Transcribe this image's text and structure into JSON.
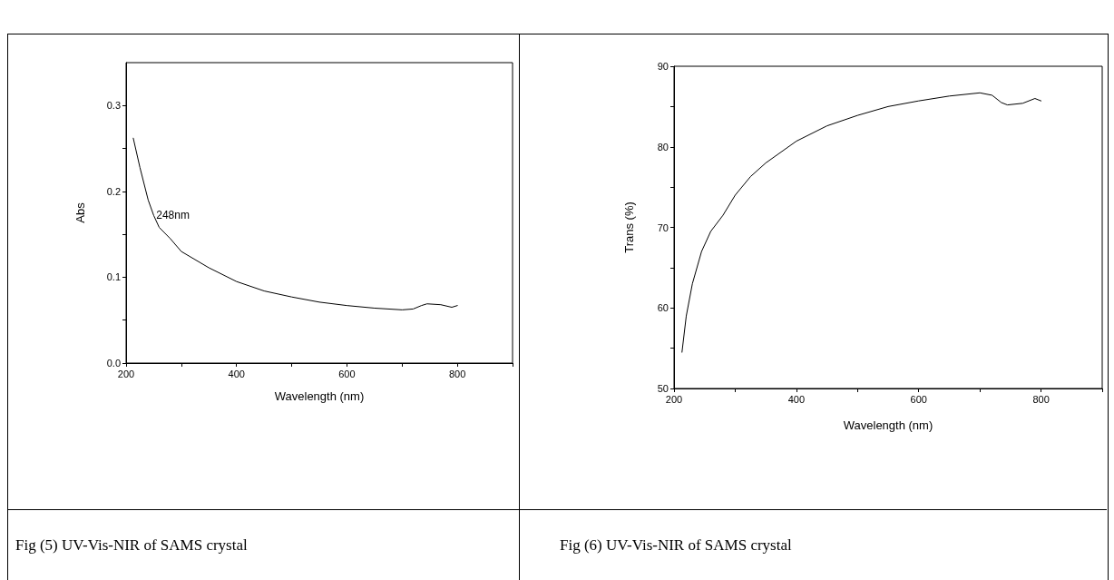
{
  "chart_data": [
    {
      "type": "line",
      "xlabel": "Wavelength (nm)",
      "ylabel": "Abs",
      "xlim": [
        200,
        900
      ],
      "ylim": [
        0,
        0.35
      ],
      "xticks": [
        200,
        {
          "value": 300,
          "label": null
        },
        400,
        {
          "value": 500,
          "label": null
        },
        600,
        {
          "value": 700,
          "label": null
        },
        800,
        {
          "value": 900,
          "label": null
        }
      ],
      "yticks": [
        "0.0",
        {
          "value": 0.05,
          "label": null
        },
        0.1,
        {
          "value": 0.15,
          "label": null
        },
        0.2,
        {
          "value": 0.25,
          "label": null
        },
        0.3
      ],
      "marker": "none",
      "line_style": "solid",
      "annotations": [
        {
          "text": "248nm",
          "x": 248,
          "y": 0.172
        },
        "Fig (5) UV-Vis-NIR of SAMS crystal"
      ],
      "series": [
        {
          "color": "#000000",
          "x": [
            213,
            225,
            240,
            250,
            260,
            280,
            300,
            350,
            400,
            450,
            500,
            550,
            600,
            650,
            700,
            720,
            735,
            745,
            770,
            790,
            800
          ],
          "values": [
            0.262,
            0.228,
            0.19,
            0.172,
            0.158,
            0.145,
            0.13,
            0.111,
            0.095,
            0.084,
            0.077,
            0.071,
            0.067,
            0.064,
            0.062,
            0.063,
            0.067,
            0.069,
            0.068,
            0.065,
            0.067
          ]
        }
      ]
    },
    {
      "type": "line",
      "xlabel": "Wavelength (nm)",
      "ylabel": "Trans (%)",
      "xlim": [
        200,
        900
      ],
      "ylim": [
        50,
        90
      ],
      "xticks": [
        200,
        {
          "value": 300,
          "label": null
        },
        400,
        {
          "value": 500,
          "label": null
        },
        600,
        {
          "value": 700,
          "label": null
        },
        800,
        {
          "value": 900,
          "label": null
        }
      ],
      "yticks": [
        50,
        {
          "value": 55,
          "label": null
        },
        60,
        {
          "value": 65,
          "label": null
        },
        70,
        {
          "value": 75,
          "label": null
        },
        80,
        {
          "value": 85,
          "label": null
        },
        90
      ],
      "marker": "none",
      "line_style": "solid",
      "annotations": [
        "Fig (6) UV-Vis-NIR of SAMS crystal"
      ],
      "series": [
        {
          "color": "#000000",
          "x": [
            213,
            220,
            230,
            245,
            260,
            280,
            300,
            325,
            350,
            400,
            450,
            500,
            550,
            600,
            650,
            700,
            720,
            735,
            745,
            770,
            790,
            800
          ],
          "values": [
            54.5,
            59,
            63,
            67,
            69.5,
            71.5,
            74,
            76.3,
            78,
            80.7,
            82.6,
            83.9,
            85,
            85.7,
            86.3,
            86.7,
            86.4,
            85.5,
            85.2,
            85.4,
            86,
            85.7
          ]
        }
      ]
    }
  ]
}
